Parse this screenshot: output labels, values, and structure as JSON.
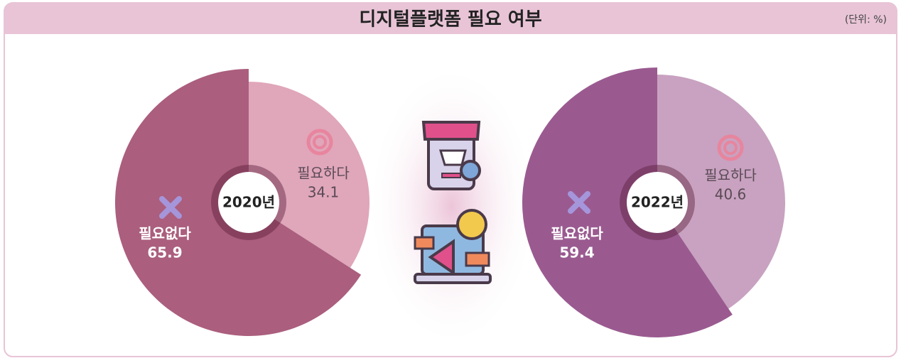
{
  "header": {
    "title": "디지털플랫폼 필요 여부",
    "unit": "(단위: %)"
  },
  "chart_data": [
    {
      "type": "pie",
      "center_label": "2020년",
      "categories": [
        "필요하다",
        "필요없다"
      ],
      "values": [
        34.1,
        65.9
      ],
      "colors": [
        "#e0a6ba",
        "#ab5e7d"
      ]
    },
    {
      "type": "pie",
      "center_label": "2022년",
      "categories": [
        "필요하다",
        "필요없다"
      ],
      "values": [
        40.6,
        59.4
      ],
      "colors": [
        "#c8a2c0",
        "#9a5a90"
      ]
    }
  ]
}
